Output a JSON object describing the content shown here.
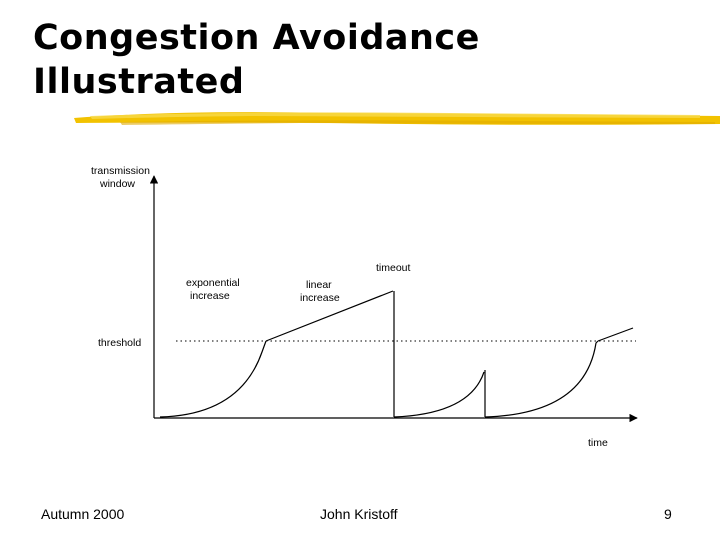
{
  "slide": {
    "title_line1": "Congestion Avoidance",
    "title_line2": "Illustrated",
    "accent_color": "#f2c200"
  },
  "diagram": {
    "y_axis_label_line1": "transmission",
    "y_axis_label_line2": "window",
    "x_axis_label": "time",
    "threshold_label": "threshold",
    "exponential_label_line1": "exponential",
    "exponential_label_line2": "increase",
    "linear_label_line1": "linear",
    "linear_label_line2": "increase",
    "timeout_label": "timeout"
  },
  "footer": {
    "left": "Autumn 2000",
    "center": "John Kristoff",
    "page_number": "9"
  }
}
